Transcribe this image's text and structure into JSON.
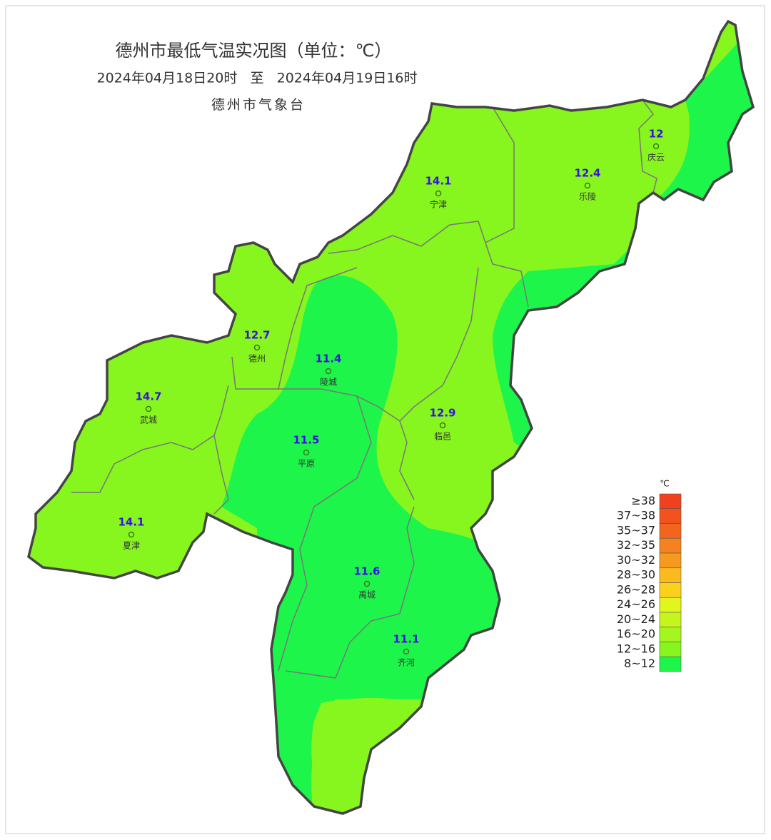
{
  "title": "德州市最低气温实况图（单位：℃）",
  "subtitle": "2024年04月18日20时   至   2024年04月19日16时",
  "agency": "德州市气象台",
  "stations": [
    {
      "name": "庆云",
      "value": 12
    },
    {
      "name": "乐陵",
      "value": 12.4
    },
    {
      "name": "宁津",
      "value": 14.1
    },
    {
      "name": "德州",
      "value": 12.7
    },
    {
      "name": "陵城",
      "value": 11.4
    },
    {
      "name": "武城",
      "value": 14.7
    },
    {
      "name": "临邑",
      "value": 12.9
    },
    {
      "name": "平原",
      "value": 11.5
    },
    {
      "name": "夏津",
      "value": 14.1
    },
    {
      "name": "禹城",
      "value": 11.6
    },
    {
      "name": "齐河",
      "value": 11.1
    }
  ],
  "legend": {
    "unit": "℃",
    "items": [
      {
        "label": "≥38",
        "color": "#f0401e"
      },
      {
        "label": "37~38",
        "color": "#f2521e"
      },
      {
        "label": "35~37",
        "color": "#f2651e"
      },
      {
        "label": "32~35",
        "color": "#f5821e"
      },
      {
        "label": "30~32",
        "color": "#f59a1e"
      },
      {
        "label": "28~30",
        "color": "#fbbb1e"
      },
      {
        "label": "26~28",
        "color": "#fbd11e"
      },
      {
        "label": "24~26",
        "color": "#e3f51e"
      },
      {
        "label": "20~24",
        "color": "#c6f51e"
      },
      {
        "label": "16~20",
        "color": "#a5f51e"
      },
      {
        "label": "12~16",
        "color": "#87f51e"
      },
      {
        "label": "8~12",
        "color": "#1ef54b"
      }
    ]
  }
}
